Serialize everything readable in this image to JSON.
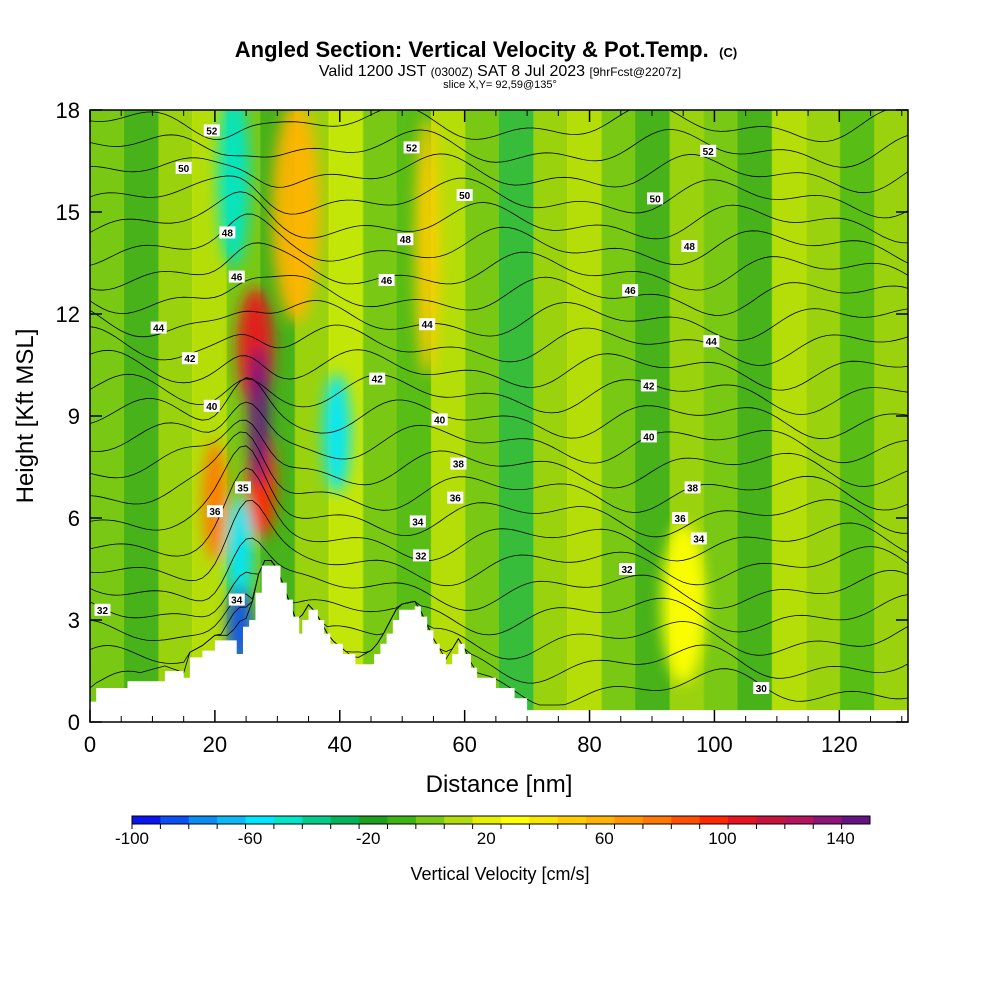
{
  "title": {
    "main": "Angled Section: Vertical Velocity & Pot.Temp.",
    "main_suffix": "(C)",
    "valid_prefix": "Valid 1200 JST",
    "valid_utc": "(0300Z)",
    "valid_date": "SAT 8 Jul 2023",
    "forecast": "[9hrFcst@2207z]",
    "slice": "slice X,Y= 92,59@135°"
  },
  "chart_data": {
    "type": "heatmap",
    "xlabel": "Distance [nm]",
    "ylabel": "Height [Kft MSL]",
    "xlim": [
      0,
      131
    ],
    "ylim": [
      0,
      18
    ],
    "x_ticks": [
      "0",
      "20",
      "40",
      "60",
      "80",
      "100",
      "120"
    ],
    "y_ticks": [
      "0",
      "3",
      "6",
      "9",
      "12",
      "15",
      "18"
    ],
    "x_tick_values": [
      0,
      20,
      40,
      60,
      80,
      100,
      120
    ],
    "y_tick_values": [
      0,
      3,
      6,
      9,
      12,
      15,
      18
    ],
    "colorbar": {
      "title": "Vertical Velocity [cm/s]",
      "ticks": [
        "-100",
        "-60",
        "-20",
        "20",
        "60",
        "100",
        "140"
      ],
      "tick_values": [
        -100,
        -60,
        -20,
        20,
        60,
        100,
        140
      ],
      "range": [
        -100,
        150
      ],
      "step": 10,
      "colors": [
        "#0a14f0",
        "#0a50f5",
        "#0a8cf5",
        "#0ab9f5",
        "#00e6ff",
        "#00e6c8",
        "#00cc8c",
        "#00b45a",
        "#1ea01e",
        "#3cb414",
        "#78c814",
        "#b4dc0a",
        "#e6f000",
        "#ffff00",
        "#fae600",
        "#ffcc00",
        "#ffb400",
        "#ff9600",
        "#ff7800",
        "#ff5000",
        "#ff2800",
        "#e6141e",
        "#c8143c",
        "#b4145a",
        "#8c1478",
        "#641482"
      ]
    },
    "velocity_features": [
      {
        "name": "updraft-core",
        "x": 27,
        "z": 9,
        "value": 150
      },
      {
        "name": "updraft-shoulder",
        "x": 26.5,
        "z": 11,
        "value": 110
      },
      {
        "name": "updraft-low",
        "x": 27.5,
        "z": 7,
        "value": 100
      },
      {
        "name": "downdraft-low",
        "x": 24,
        "z": 2.8,
        "value": -90
      },
      {
        "name": "downdraft-mid",
        "x": 24,
        "z": 5,
        "value": -60
      },
      {
        "name": "downdraft-upper",
        "x": 23,
        "z": 16,
        "value": -50
      },
      {
        "name": "updraft-upper",
        "x": 33,
        "z": 15,
        "value": 60
      },
      {
        "name": "updraft-west",
        "x": 20,
        "z": 6.5,
        "value": 80
      },
      {
        "name": "downdraft-38",
        "x": 39.5,
        "z": 8.5,
        "value": -55
      },
      {
        "name": "updraft-54",
        "x": 54,
        "z": 14,
        "value": 55
      },
      {
        "name": "updraft-95",
        "x": 95,
        "z": 3.5,
        "value": 30
      }
    ],
    "potential_temperature_labels": [
      {
        "value": "52",
        "x": 19.5,
        "z": 17.4
      },
      {
        "value": "52",
        "x": 51.5,
        "z": 16.9
      },
      {
        "value": "52",
        "x": 99,
        "z": 16.8
      },
      {
        "value": "50",
        "x": 15,
        "z": 16.3
      },
      {
        "value": "50",
        "x": 60,
        "z": 15.5
      },
      {
        "value": "50",
        "x": 90.5,
        "z": 15.4
      },
      {
        "value": "48",
        "x": 22,
        "z": 14.4
      },
      {
        "value": "48",
        "x": 50.5,
        "z": 14.2
      },
      {
        "value": "48",
        "x": 96,
        "z": 14.0
      },
      {
        "value": "46",
        "x": 23.5,
        "z": 13.1
      },
      {
        "value": "46",
        "x": 47.5,
        "z": 13.0
      },
      {
        "value": "46",
        "x": 86.5,
        "z": 12.7
      },
      {
        "value": "44",
        "x": 11,
        "z": 11.6
      },
      {
        "value": "44",
        "x": 54,
        "z": 11.7
      },
      {
        "value": "44",
        "x": 99.5,
        "z": 11.2
      },
      {
        "value": "42",
        "x": 16,
        "z": 10.7
      },
      {
        "value": "42",
        "x": 46,
        "z": 10.1
      },
      {
        "value": "42",
        "x": 89.5,
        "z": 9.9
      },
      {
        "value": "40",
        "x": 19.5,
        "z": 9.3
      },
      {
        "value": "40",
        "x": 56,
        "z": 8.9
      },
      {
        "value": "40",
        "x": 89.5,
        "z": 8.4
      },
      {
        "value": "38",
        "x": 59,
        "z": 7.6
      },
      {
        "value": "38",
        "x": 96.5,
        "z": 6.9
      },
      {
        "value": "36",
        "x": 20,
        "z": 6.2
      },
      {
        "value": "36",
        "x": 58.5,
        "z": 6.6
      },
      {
        "value": "36",
        "x": 94.5,
        "z": 6.0
      },
      {
        "value": "35",
        "x": 24.5,
        "z": 6.9
      },
      {
        "value": "34",
        "x": 52.5,
        "z": 5.9
      },
      {
        "value": "34",
        "x": 97.5,
        "z": 5.4
      },
      {
        "value": "34",
        "x": 23.5,
        "z": 3.6
      },
      {
        "value": "32",
        "x": 53,
        "z": 4.9
      },
      {
        "value": "32",
        "x": 86,
        "z": 4.5
      },
      {
        "value": "32",
        "x": 2,
        "z": 3.3
      },
      {
        "value": "30",
        "x": 107.5,
        "z": 1.0
      }
    ],
    "potential_temperature_levels": [
      30,
      31,
      32,
      33,
      34,
      35,
      36,
      37,
      38,
      39,
      40,
      41,
      42,
      43,
      44,
      45,
      46,
      47,
      48,
      49,
      50,
      51,
      52,
      53
    ],
    "terrain": [
      [
        0,
        0.6
      ],
      [
        1,
        1.0
      ],
      [
        6,
        1.2
      ],
      [
        12,
        1.5
      ],
      [
        15,
        1.3
      ],
      [
        16,
        1.9
      ],
      [
        18,
        2.1
      ],
      [
        20,
        2.4
      ],
      [
        22,
        2.4
      ],
      [
        23.5,
        2.0
      ],
      [
        24.5,
        2.8
      ],
      [
        25.5,
        3.0
      ],
      [
        26.5,
        3.8
      ],
      [
        27.5,
        4.6
      ],
      [
        29.5,
        4.6
      ],
      [
        30.5,
        4.1
      ],
      [
        31.5,
        3.6
      ],
      [
        32.5,
        3.1
      ],
      [
        33.5,
        2.6
      ],
      [
        34,
        3.0
      ],
      [
        35,
        3.3
      ],
      [
        36.5,
        3.0
      ],
      [
        37.5,
        2.6
      ],
      [
        38.5,
        2.3
      ],
      [
        40.5,
        2.0
      ],
      [
        42.5,
        1.7
      ],
      [
        45.5,
        2.0
      ],
      [
        46.5,
        2.3
      ],
      [
        47.5,
        2.6
      ],
      [
        48.5,
        3.0
      ],
      [
        49.5,
        3.3
      ],
      [
        52,
        3.4
      ],
      [
        53,
        3.1
      ],
      [
        54,
        2.7
      ],
      [
        55,
        2.3
      ],
      [
        56,
        2.0
      ],
      [
        57,
        1.7
      ],
      [
        58,
        2.0
      ],
      [
        59,
        2.3
      ],
      [
        60,
        2.0
      ],
      [
        61,
        1.6
      ],
      [
        62,
        1.3
      ],
      [
        65,
        1.0
      ],
      [
        68,
        0.7
      ],
      [
        70,
        0.35
      ],
      [
        131,
        0.35
      ]
    ]
  }
}
